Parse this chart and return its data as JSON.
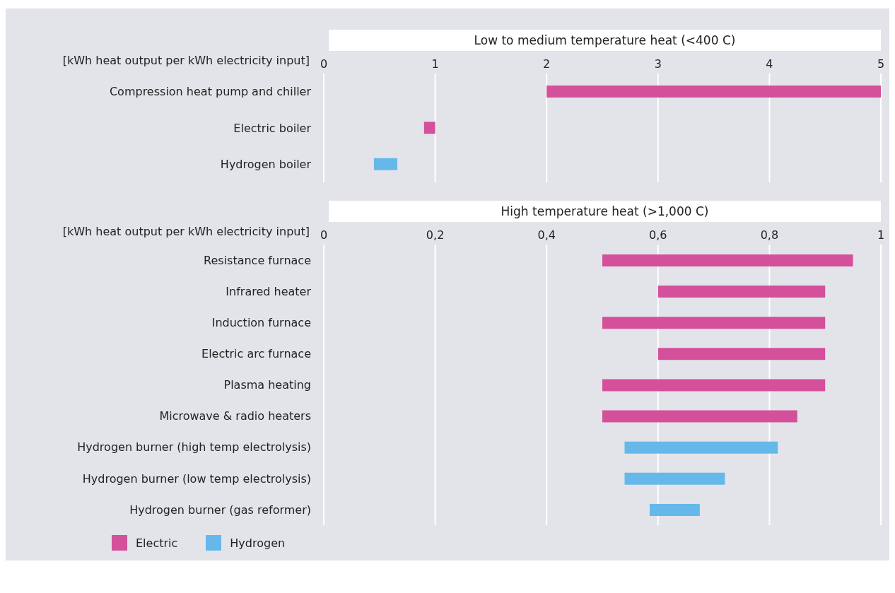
{
  "chart_data": [
    {
      "type": "bar",
      "orientation": "horizontal",
      "title": "Low to medium temperature heat (<400 C)",
      "xlabel": "[kWh heat output per kWh electricity input]",
      "categories": [
        "Compression heat pump and chiller",
        "Electric boiler",
        "Hydrogen boiler"
      ],
      "series": [
        {
          "color": "#d4509a",
          "values": [
            3,
            0.1,
            null
          ],
          "base": [
            2,
            0.9,
            null
          ]
        },
        {
          "color": "#64b9ea",
          "values": [
            null,
            null,
            0.21
          ],
          "base": [
            null,
            null,
            0.45
          ]
        }
      ],
      "xlim": [
        0,
        5
      ],
      "xticks": [
        0,
        1,
        2,
        3,
        4,
        5
      ],
      "grid": "x",
      "legend": false
    },
    {
      "type": "bar",
      "orientation": "horizontal",
      "title": "High temperature heat (>1,000 C)",
      "xlabel": "[kWh heat output per kWh electricity input]",
      "categories": [
        "Resistance furnace",
        "Infrared heater",
        "Induction furnace",
        "Electric arc furnace",
        "Plasma heating",
        "Microwave & radio heaters",
        "Hydrogen burner (high temp electrolysis)",
        "Hydrogen burner (low temp electrolysis)",
        "Hydrogen burner (gas reformer)"
      ],
      "series": [
        {
          "name": "Electric",
          "color": "#d4509a",
          "values": [
            0.45,
            0.3,
            0.4,
            0.3,
            0.4,
            0.35,
            null,
            null,
            null
          ],
          "base": [
            0.5,
            0.6,
            0.5,
            0.6,
            0.5,
            0.5,
            null,
            null,
            null
          ]
        },
        {
          "name": "Hydrogen",
          "color": "#64b9ea",
          "values": [
            null,
            null,
            null,
            null,
            null,
            null,
            0.275,
            0.18,
            0.09
          ],
          "base": [
            null,
            null,
            null,
            null,
            null,
            null,
            0.54,
            0.54,
            0.585
          ]
        }
      ],
      "xlim": [
        0,
        1
      ],
      "xticks": [
        0,
        {
          "value": 0.2,
          "label": "0,2"
        },
        {
          "value": 0.4,
          "label": "0,4"
        },
        {
          "value": 0.6,
          "label": "0,6"
        },
        {
          "value": 0.8,
          "label": "0,8"
        },
        1
      ],
      "grid": "x",
      "legend": "bottom left"
    }
  ]
}
